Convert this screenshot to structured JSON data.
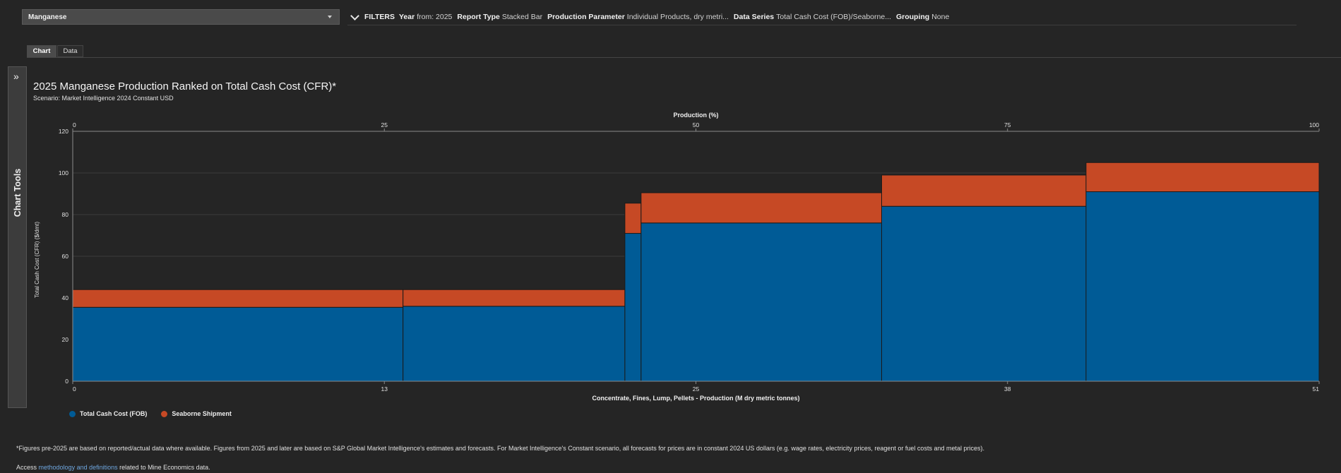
{
  "commodity_select": {
    "value": "Manganese"
  },
  "filters": {
    "label": "FILTERS",
    "items": [
      {
        "key": "Year",
        "value": "from: 2025"
      },
      {
        "key": "Report Type",
        "value": "Stacked Bar"
      },
      {
        "key": "Production Parameter",
        "value": "Individual Products, dry metri..."
      },
      {
        "key": "Data Series",
        "value": "Total Cash Cost (FOB)/Seaborne..."
      },
      {
        "key": "Grouping",
        "value": "None"
      }
    ]
  },
  "tabs": {
    "chart": "Chart",
    "data": "Data"
  },
  "chart_tools": {
    "label": "Chart Tools",
    "expand_icon": "»"
  },
  "chart_data": {
    "type": "bar",
    "title": "2025 Manganese Production Ranked on Total Cash Cost (CFR)*",
    "subtitle": "Scenario: Market Intelligence 2024 Constant USD",
    "xlabel": "Concentrate, Fines, Lump, Pellets - Production (M dry metric tonnes)",
    "x2label": "Production (%)",
    "ylabel": "Total Cash Cost (CFR) ($/dmt)",
    "ylim": [
      0,
      120
    ],
    "xlim": [
      0,
      51
    ],
    "x2lim": [
      0,
      100
    ],
    "yticks": [
      0,
      20,
      40,
      60,
      80,
      100,
      120
    ],
    "x_tick_labels": [
      "0",
      "13",
      "25",
      "38",
      "51"
    ],
    "x2_tick_labels": [
      "0",
      "25",
      "50",
      "75",
      "100"
    ],
    "grid": true,
    "legend_position": "bottom-left",
    "colors": {
      "Total Cash Cost (FOB)": "#005b96",
      "Seaborne Shipment": "#c64925"
    },
    "bars": [
      {
        "x_start": 0,
        "x_end": 26.5,
        "fob": 35.5,
        "seaborne": 8.5
      },
      {
        "x_start": 26.5,
        "x_end": 44.3,
        "fob": 36,
        "seaborne": 8
      },
      {
        "x_start": 44.3,
        "x_end": 45.6,
        "fob": 71,
        "seaborne": 14.5
      },
      {
        "x_start": 45.6,
        "x_end": 64.9,
        "fob": 76,
        "seaborne": 14.5
      },
      {
        "x_start": 64.9,
        "x_end": 81.3,
        "fob": 84,
        "seaborne": 15
      },
      {
        "x_start": 81.3,
        "x_end": 100,
        "fob": 91,
        "seaborne": 14
      }
    ],
    "series": [
      {
        "name": "Total Cash Cost (FOB)",
        "values": [
          35.5,
          36,
          71,
          76,
          84,
          91
        ]
      },
      {
        "name": "Seaborne Shipment",
        "values": [
          8.5,
          8,
          14.5,
          14.5,
          15,
          14
        ]
      }
    ]
  },
  "footnote": "*Figures pre-2025 are based on reported/actual data where available. Figures from 2025 and later are based on S&P Global Market Intelligence's estimates and forecasts. For Market Intelligence's Constant scenario, all forecasts for prices are in constant 2024 US dollars (e.g. wage rates, electricity prices, reagent or fuel costs and metal prices).",
  "access": {
    "prefix": "Access",
    "link": "methodology and definitions",
    "suffix": "related to Mine Economics data."
  }
}
